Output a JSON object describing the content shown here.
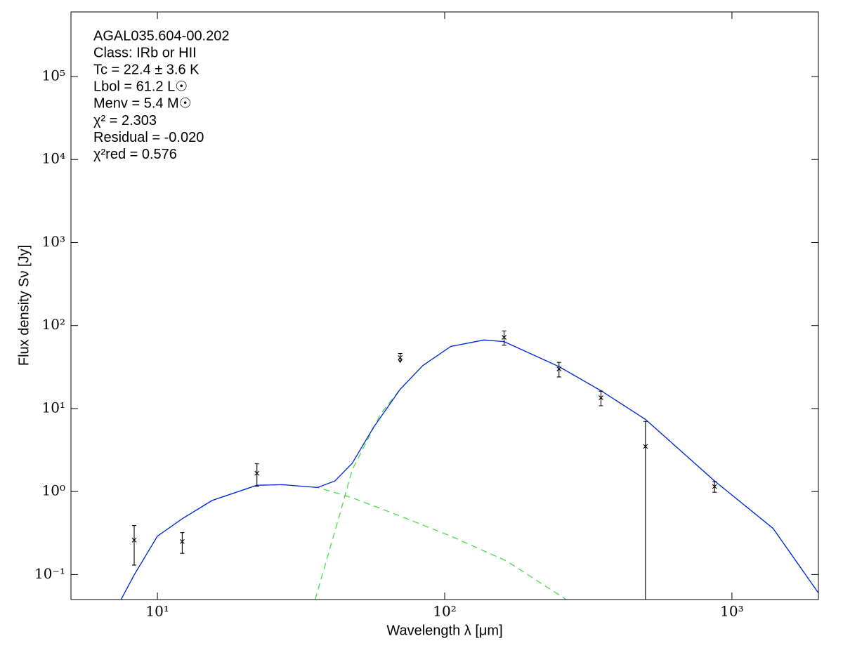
{
  "chart_data": {
    "type": "sed",
    "xlabel": "Wavelength λ [μm]",
    "ylabel": "Flux density Sν [Jy]",
    "annotations": [
      "AGAL035.604-00.202",
      "Class: IRb or HII",
      "Tc = 22.4 ± 3.6 K",
      "Lbol = 61.2 L☉",
      "Menv = 5.4 M☉",
      "χ² = 2.303",
      "Residual = -0.020",
      "χ²red = 0.576"
    ],
    "xscale": "log",
    "yscale": "log",
    "xlim": [
      5,
      2000
    ],
    "ylim": [
      0.05,
      600000
    ],
    "xticks": [
      {
        "value": 10,
        "label": "10¹"
      },
      {
        "value": 100,
        "label": "10²"
      },
      {
        "value": 1000,
        "label": "10³"
      }
    ],
    "yticks": [
      {
        "value": 0.1,
        "label": "10⁻¹"
      },
      {
        "value": 1,
        "label": "10⁰"
      },
      {
        "value": 10,
        "label": "10¹"
      },
      {
        "value": 100,
        "label": "10²"
      },
      {
        "value": 1000,
        "label": "10³"
      },
      {
        "value": 10000,
        "label": "10⁴"
      },
      {
        "value": 100000,
        "label": "10⁵"
      }
    ],
    "series": [
      {
        "color": "#44dd44",
        "style": "dashed",
        "x": [
          7.47,
          8.3,
          10,
          12.2,
          15.5,
          22.2,
          27.2,
          36.1,
          47.7,
          66.8,
          105,
          164,
          265
        ],
        "values": [
          0.05,
          0.099,
          0.29,
          0.47,
          0.78,
          1.19,
          1.21,
          1.12,
          0.84,
          0.54,
          0.29,
          0.146,
          0.05
        ]
      },
      {
        "color": "#44dd44",
        "style": "dashed",
        "x": [
          35.4,
          42.7,
          47.7,
          59.8,
          70,
          84,
          105,
          137,
          161,
          250,
          350,
          500,
          870,
          1390,
          2000
        ],
        "values": [
          0.05,
          0.47,
          1.83,
          8.6,
          17.1,
          33,
          56,
          67,
          64,
          32,
          16.4,
          7.4,
          1.34,
          0.36,
          0.06
        ]
      },
      {
        "color": "#0022dd",
        "style": "solid",
        "x": [
          7.47,
          8.3,
          10,
          12.2,
          15.5,
          22.2,
          27.2,
          36.1,
          41.5,
          47.7,
          56.5,
          70,
          84,
          105,
          137,
          161,
          250,
          350,
          500,
          870,
          1390,
          2000
        ],
        "values": [
          0.05,
          0.099,
          0.29,
          0.47,
          0.78,
          1.19,
          1.21,
          1.12,
          1.34,
          2.2,
          5.9,
          17.1,
          33,
          56,
          67,
          64,
          32,
          16.4,
          7.4,
          1.34,
          0.36,
          0.06
        ]
      }
    ],
    "points": {
      "color": "#000000",
      "x": [
        8.3,
        12.2,
        22.2,
        70,
        161,
        250,
        350,
        500,
        870
      ],
      "values": [
        0.26,
        0.25,
        1.66,
        41,
        72,
        30,
        13.5,
        3.5,
        1.15
      ],
      "errors": [
        0.13,
        0.07,
        0.5,
        5,
        14,
        6,
        2.7,
        3.5,
        0.17
      ],
      "upper_limits": [
        false,
        false,
        false,
        true,
        false,
        false,
        false,
        false,
        false
      ]
    }
  }
}
